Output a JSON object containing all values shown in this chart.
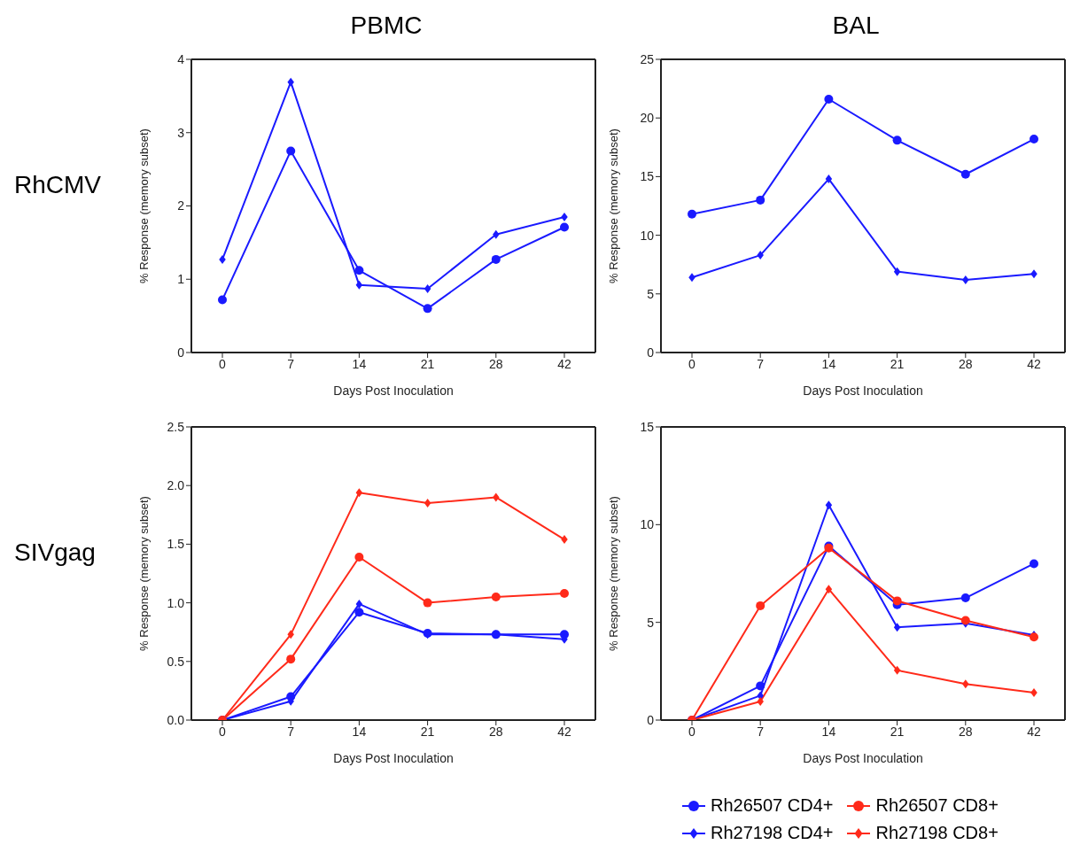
{
  "chart_data": [
    {
      "type": "line",
      "title": "PBMC",
      "annotations": [
        "RhCMV"
      ],
      "xlabel": "Days Post Inoculation",
      "ylabel": "% Response (memory subset)",
      "categories": [
        "0",
        "7",
        "14",
        "21",
        "28",
        "42"
      ],
      "ylim": [
        0,
        4
      ],
      "yticks": [
        0,
        1,
        2,
        3,
        4
      ],
      "legend": false,
      "series": [
        {
          "color": "#1a1aff",
          "marker": "circle",
          "values": [
            0.72,
            2.75,
            1.12,
            0.6,
            1.27,
            1.71
          ]
        },
        {
          "color": "#1a1aff",
          "marker": "diamond",
          "values": [
            1.27,
            3.69,
            0.92,
            0.87,
            1.61,
            1.85
          ]
        }
      ]
    },
    {
      "type": "line",
      "title": "BAL",
      "xlabel": "Days Post Inoculation",
      "ylabel": "% Response (memory subset)",
      "categories": [
        "0",
        "7",
        "14",
        "21",
        "28",
        "42"
      ],
      "ylim": [
        0,
        25
      ],
      "yticks": [
        0,
        5,
        10,
        15,
        20,
        25
      ],
      "legend": false,
      "series": [
        {
          "color": "#1a1aff",
          "marker": "circle",
          "values": [
            11.8,
            13.0,
            21.6,
            18.1,
            15.2,
            18.2
          ]
        },
        {
          "color": "#1a1aff",
          "marker": "diamond",
          "values": [
            6.4,
            8.3,
            14.8,
            6.9,
            6.2,
            6.7
          ]
        }
      ]
    },
    {
      "type": "line",
      "annotations": [
        "SIVgag"
      ],
      "xlabel": "Days Post Inoculation",
      "ylabel": "% Response (memory subset)",
      "categories": [
        "0",
        "7",
        "14",
        "21",
        "28",
        "42"
      ],
      "ylim": [
        0,
        2.5
      ],
      "yticks": [
        {
          "value": 0,
          "label": "0.0"
        },
        {
          "value": 0.5,
          "label": "0.5"
        },
        {
          "value": 1,
          "label": "1.0"
        },
        {
          "value": 1.5,
          "label": "1.5"
        },
        {
          "value": 2,
          "label": "2.0"
        },
        {
          "value": 2.5,
          "label": "2.5"
        }
      ],
      "legend": false,
      "series": [
        {
          "color": "#1a1aff",
          "marker": "circle",
          "values": [
            0,
            0.2,
            0.92,
            0.74,
            0.73,
            0.73
          ]
        },
        {
          "color": "#1a1aff",
          "marker": "diamond",
          "values": [
            0,
            0.16,
            0.99,
            0.73,
            0.73,
            0.69
          ]
        },
        {
          "color": "#ff2a1a",
          "marker": "circle",
          "values": [
            0,
            0.52,
            1.39,
            1.0,
            1.05,
            1.08
          ]
        },
        {
          "color": "#ff2a1a",
          "marker": "diamond",
          "values": [
            0,
            0.73,
            1.94,
            1.85,
            1.9,
            1.54
          ]
        }
      ]
    },
    {
      "type": "line",
      "xlabel": "Days Post Inoculation",
      "ylabel": "% Response (memory subset)",
      "categories": [
        "0",
        "7",
        "14",
        "21",
        "28",
        "42"
      ],
      "ylim": [
        0,
        15
      ],
      "yticks": [
        0,
        5,
        10,
        15
      ],
      "legend": "bottom",
      "series": [
        {
          "name": "Rh26507 CD4+",
          "color": "#1a1aff",
          "marker": "circle",
          "values": [
            0,
            1.75,
            8.9,
            5.9,
            6.25,
            8.0
          ]
        },
        {
          "name": "Rh27198 CD4+",
          "color": "#1a1aff",
          "marker": "diamond",
          "values": [
            0,
            1.25,
            11.0,
            4.75,
            4.95,
            4.35
          ]
        },
        {
          "name": "Rh26507 CD8+",
          "color": "#ff2a1a",
          "marker": "circle",
          "values": [
            0,
            5.85,
            8.8,
            6.1,
            5.1,
            4.25
          ]
        },
        {
          "name": "Rh27198 CD8+",
          "color": "#ff2a1a",
          "marker": "diamond",
          "values": [
            0,
            0.95,
            6.7,
            2.55,
            1.85,
            1.4
          ]
        }
      ]
    }
  ]
}
